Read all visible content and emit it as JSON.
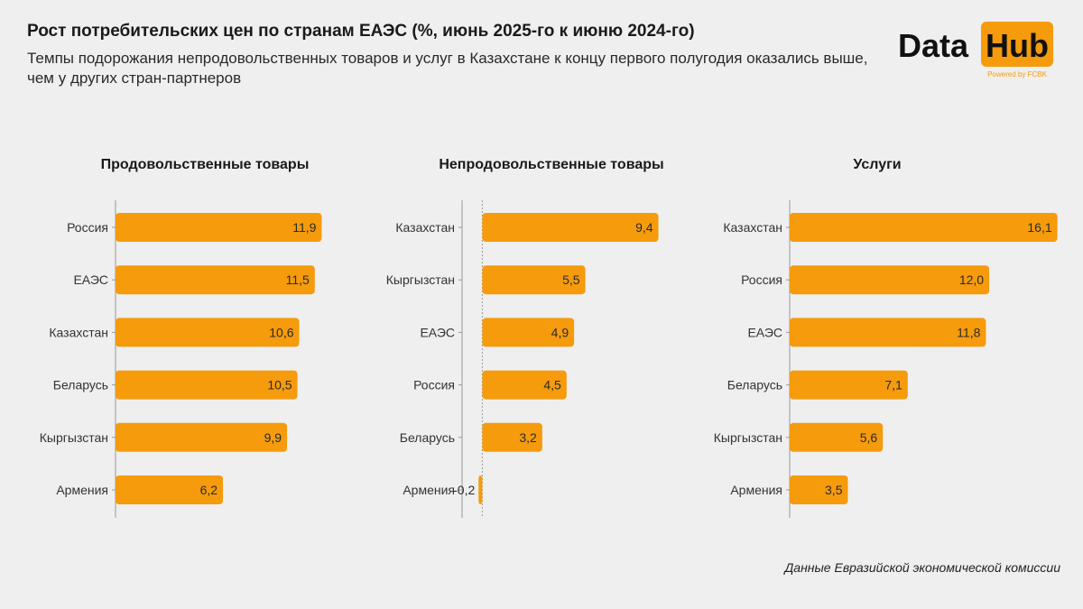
{
  "header": {
    "title": "Рост потребительских цен по странам ЕАЭС (%, июнь 2025-го к июню 2024-го)",
    "subtitle": "Темпы подорожания непродовольственных товаров и услуг в Казахстане к концу первого полугодия оказались выше, чем у других стран-партнеров"
  },
  "logo": {
    "word1": "Data",
    "word2": "Hub",
    "powered": "Powered by FCBK",
    "brand_color": "#f59b0c"
  },
  "source": "Данные Евразийской экономической комиссии",
  "colors": {
    "bar": "#f59b0c",
    "axis": "#999999",
    "text": "#333333"
  },
  "chart_data": [
    {
      "type": "bar",
      "orientation": "horizontal",
      "title": "Продовольственные товары",
      "categories": [
        "Россия",
        "ЕАЭС",
        "Казахстан",
        "Беларусь",
        "Кыргызстан",
        "Армения"
      ],
      "values": [
        11.9,
        11.5,
        10.6,
        10.5,
        9.9,
        6.2
      ],
      "labels": [
        "11,9",
        "11,5",
        "10,6",
        "10,5",
        "9,9",
        "6,2"
      ],
      "xlim": [
        0,
        12.5
      ]
    },
    {
      "type": "bar",
      "orientation": "horizontal",
      "title": "Непродовольственные товары",
      "categories": [
        "Казахстан",
        "Кыргызстан",
        "ЕАЭС",
        "Россия",
        "Беларусь",
        "Армения"
      ],
      "values": [
        9.4,
        5.5,
        4.9,
        4.5,
        3.2,
        -0.2
      ],
      "labels": [
        "9,4",
        "5,5",
        "4,9",
        "4,5",
        "3,2",
        "-0,2"
      ],
      "xlim": [
        -5.8,
        10
      ]
    },
    {
      "type": "bar",
      "orientation": "horizontal",
      "title": "Услуги",
      "categories": [
        "Казахстан",
        "Россия",
        "ЕАЭС",
        "Беларусь",
        "Кыргызстан",
        "Армения"
      ],
      "values": [
        16.1,
        12.0,
        11.8,
        7.1,
        5.6,
        3.5
      ],
      "labels": [
        "16,1",
        "12,0",
        "11,8",
        "7,1",
        "5,6",
        "3,5"
      ],
      "xlim": [
        0,
        16.5
      ]
    }
  ]
}
